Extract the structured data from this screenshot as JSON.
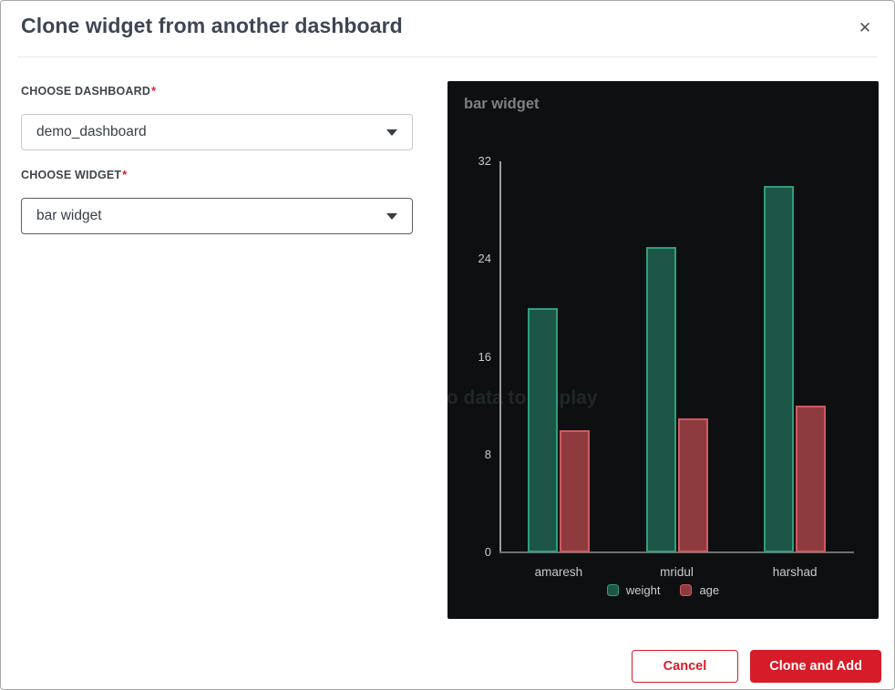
{
  "modal": {
    "title": "Clone widget from another dashboard",
    "close_icon": "✕"
  },
  "form": {
    "dashboard_label": "CHOOSE DASHBOARD",
    "widget_label": "CHOOSE WIDGET",
    "required_marker": "*",
    "dashboard_value": "demo_dashboard",
    "widget_value": "bar widget"
  },
  "footer": {
    "cancel_label": "Cancel",
    "submit_label": "Clone and Add"
  },
  "colors": {
    "accent_red": "#d51c28",
    "panel_bg": "#0e0f11",
    "weight_fill": "#1d5646",
    "weight_stroke": "#2f9e7e",
    "age_fill": "#8e3b40",
    "age_stroke": "#d05a62"
  },
  "chart_data": {
    "type": "bar",
    "title": "bar widget",
    "categories": [
      "amaresh",
      "mridul",
      "harshad"
    ],
    "series": [
      {
        "name": "weight",
        "values": [
          20,
          25,
          30
        ],
        "fill": "#1d5646",
        "stroke": "#2f9e7e"
      },
      {
        "name": "age",
        "values": [
          10,
          11,
          12
        ],
        "fill": "#8e3b40",
        "stroke": "#d05a62"
      }
    ],
    "xlabel": "",
    "ylabel": "",
    "ylim": [
      0,
      32
    ],
    "yticks": [
      0,
      8,
      16,
      24,
      32
    ],
    "grid": false,
    "legend_position": "bottom",
    "empty_state_watermark": "no data to display"
  }
}
